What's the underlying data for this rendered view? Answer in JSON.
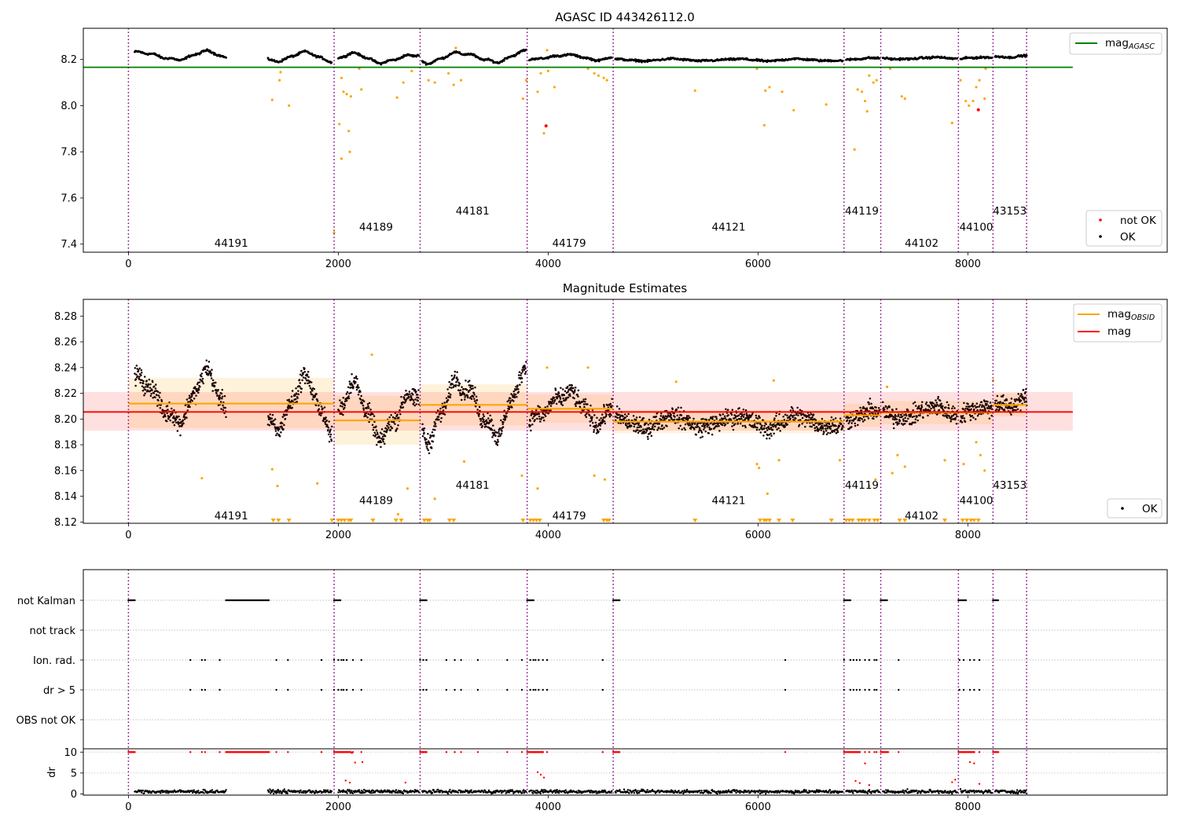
{
  "chart_data": [
    {
      "type": "scatter",
      "title": "AGASC ID 443426112.0",
      "xlim": [
        -430,
        9900
      ],
      "ylim": [
        7.365,
        8.335
      ],
      "xticks": [
        0,
        2000,
        4000,
        6000,
        8000
      ],
      "yticks": [
        7.4,
        7.6,
        7.8,
        8.0,
        8.2
      ],
      "ytick_labels": [
        "7.4",
        "7.6",
        "7.8",
        "8.0",
        "8.2"
      ],
      "mag_agasc": 8.166,
      "mag_agasc_xrange": [
        -430,
        9000
      ],
      "obsid_boundaries": [
        0,
        1960,
        2780,
        3800,
        4620,
        6820,
        7170,
        7910,
        8240,
        8560
      ],
      "obsids": [
        {
          "label": "44191",
          "x": 980,
          "y": 7.405
        },
        {
          "label": "44189",
          "x": 2360,
          "y": 7.475
        },
        {
          "label": "44181",
          "x": 3280,
          "y": 7.545
        },
        {
          "label": "44179",
          "x": 4200,
          "y": 7.405
        },
        {
          "label": "44121",
          "x": 5720,
          "y": 7.475
        },
        {
          "label": "44119",
          "x": 6990,
          "y": 7.545
        },
        {
          "label": "44102",
          "x": 7560,
          "y": 7.405
        },
        {
          "label": "44100",
          "x": 8080,
          "y": 7.475
        },
        {
          "label": "43153",
          "x": 8400,
          "y": 7.545
        }
      ],
      "segments": [
        {
          "start": 60,
          "end": 930,
          "base": 8.215,
          "amp": 0.025,
          "noise": 0.008
        },
        {
          "start": 1330,
          "end": 1940,
          "base": 8.21,
          "amp": 0.025,
          "noise": 0.008
        },
        {
          "start": 2000,
          "end": 2770,
          "base": 8.205,
          "amp": 0.025,
          "noise": 0.008
        },
        {
          "start": 2800,
          "end": 3790,
          "base": 8.21,
          "amp": 0.03,
          "noise": 0.008
        },
        {
          "start": 3820,
          "end": 4610,
          "base": 8.21,
          "amp": 0.015,
          "noise": 0.008
        },
        {
          "start": 4640,
          "end": 6810,
          "base": 8.198,
          "amp": 0.006,
          "noise": 0.008
        },
        {
          "start": 6840,
          "end": 7160,
          "base": 8.203,
          "amp": 0.006,
          "noise": 0.008
        },
        {
          "start": 7190,
          "end": 7900,
          "base": 8.205,
          "amp": 0.006,
          "noise": 0.008
        },
        {
          "start": 7930,
          "end": 8230,
          "base": 8.205,
          "amp": 0.006,
          "noise": 0.008
        },
        {
          "start": 8260,
          "end": 8560,
          "base": 8.215,
          "amp": 0.008,
          "noise": 0.008
        }
      ],
      "outliers": [
        {
          "x": 1370,
          "y": 8.025
        },
        {
          "x": 1440,
          "y": 8.11
        },
        {
          "x": 1450,
          "y": 8.145
        },
        {
          "x": 1530,
          "y": 8.0
        },
        {
          "x": 1960,
          "y": 7.45
        },
        {
          "x": 2010,
          "y": 7.92
        },
        {
          "x": 2030,
          "y": 7.77
        },
        {
          "x": 2050,
          "y": 8.06
        },
        {
          "x": 2080,
          "y": 8.05
        },
        {
          "x": 2100,
          "y": 7.89
        },
        {
          "x": 2110,
          "y": 7.8
        },
        {
          "x": 2120,
          "y": 8.04
        },
        {
          "x": 2030,
          "y": 8.12
        },
        {
          "x": 2200,
          "y": 8.16
        },
        {
          "x": 2220,
          "y": 8.07
        },
        {
          "x": 2560,
          "y": 8.035
        },
        {
          "x": 2620,
          "y": 8.1
        },
        {
          "x": 2700,
          "y": 8.15
        },
        {
          "x": 2860,
          "y": 8.11
        },
        {
          "x": 2920,
          "y": 8.1
        },
        {
          "x": 3050,
          "y": 8.14
        },
        {
          "x": 3100,
          "y": 8.09
        },
        {
          "x": 3120,
          "y": 8.25
        },
        {
          "x": 3170,
          "y": 8.11
        },
        {
          "x": 3760,
          "y": 8.03
        },
        {
          "x": 3790,
          "y": 8.11
        },
        {
          "x": 3900,
          "y": 8.06
        },
        {
          "x": 3930,
          "y": 8.14
        },
        {
          "x": 3960,
          "y": 7.88
        },
        {
          "x": 3990,
          "y": 8.24
        },
        {
          "x": 4000,
          "y": 8.15
        },
        {
          "x": 4060,
          "y": 8.08
        },
        {
          "x": 4380,
          "y": 8.16
        },
        {
          "x": 4440,
          "y": 8.14
        },
        {
          "x": 4480,
          "y": 8.13
        },
        {
          "x": 4530,
          "y": 8.12
        },
        {
          "x": 4560,
          "y": 8.11
        },
        {
          "x": 5400,
          "y": 8.065
        },
        {
          "x": 5990,
          "y": 8.16
        },
        {
          "x": 6060,
          "y": 7.915
        },
        {
          "x": 6070,
          "y": 8.065
        },
        {
          "x": 6110,
          "y": 8.08
        },
        {
          "x": 6230,
          "y": 8.06
        },
        {
          "x": 6340,
          "y": 7.98
        },
        {
          "x": 6650,
          "y": 8.005
        },
        {
          "x": 6920,
          "y": 7.81
        },
        {
          "x": 6950,
          "y": 8.07
        },
        {
          "x": 6990,
          "y": 8.06
        },
        {
          "x": 7020,
          "y": 8.02
        },
        {
          "x": 7040,
          "y": 7.975
        },
        {
          "x": 7060,
          "y": 8.13
        },
        {
          "x": 7100,
          "y": 8.1
        },
        {
          "x": 7130,
          "y": 8.11
        },
        {
          "x": 7370,
          "y": 8.04
        },
        {
          "x": 7400,
          "y": 8.03
        },
        {
          "x": 7260,
          "y": 8.16
        },
        {
          "x": 7850,
          "y": 7.925
        },
        {
          "x": 7930,
          "y": 8.11
        },
        {
          "x": 7980,
          "y": 8.02
        },
        {
          "x": 8010,
          "y": 8.0
        },
        {
          "x": 8050,
          "y": 8.02
        },
        {
          "x": 8080,
          "y": 8.08
        },
        {
          "x": 8110,
          "y": 8.11
        },
        {
          "x": 8160,
          "y": 8.03
        },
        {
          "x": 8170,
          "y": 8.16
        }
      ],
      "not_ok": [
        {
          "x": 3980,
          "y": 7.912
        },
        {
          "x": 8100,
          "y": 7.982
        }
      ],
      "legend": [
        {
          "label": "mag",
          "sub": "AGASC",
          "color": "#008000"
        }
      ],
      "legend2": [
        {
          "label": "not OK",
          "color": "#ff0000"
        },
        {
          "label": "OK",
          "color": "#000000"
        }
      ]
    },
    {
      "type": "scatter",
      "title": "Magnitude Estimates",
      "xlim": [
        -430,
        9900
      ],
      "ylim": [
        8.119,
        8.293
      ],
      "xticks": [
        0,
        2000,
        4000,
        6000,
        8000
      ],
      "yticks": [
        8.12,
        8.14,
        8.16,
        8.18,
        8.2,
        8.22,
        8.24,
        8.26,
        8.28
      ],
      "ytick_labels": [
        "8.12",
        "8.14",
        "8.16",
        "8.18",
        "8.20",
        "8.22",
        "8.24",
        "8.26",
        "8.28"
      ],
      "mag": 8.2055,
      "mag_band": [
        8.191,
        8.221
      ],
      "mag_xrange": [
        -430,
        9000
      ],
      "obsid_levels": [
        {
          "start": 0,
          "end": 1960,
          "mag": 8.212,
          "band": [
            8.193,
            8.232
          ]
        },
        {
          "start": 1960,
          "end": 2780,
          "mag": 8.199,
          "band": [
            8.18,
            8.218
          ]
        },
        {
          "start": 2780,
          "end": 3800,
          "mag": 8.211,
          "band": [
            8.195,
            8.227
          ]
        },
        {
          "start": 3800,
          "end": 4620,
          "mag": 8.208,
          "band": [
            8.197,
            8.219
          ]
        },
        {
          "start": 4620,
          "end": 6820,
          "mag": 8.198,
          "band": [
            8.189,
            8.207
          ]
        },
        {
          "start": 6820,
          "end": 7170,
          "mag": 8.203,
          "band": [
            8.194,
            8.212
          ]
        },
        {
          "start": 7170,
          "end": 7910,
          "mag": 8.205,
          "band": [
            8.196,
            8.214
          ]
        },
        {
          "start": 7910,
          "end": 8240,
          "mag": 8.205,
          "band": [
            8.196,
            8.214
          ]
        },
        {
          "start": 8240,
          "end": 8560,
          "mag": 8.211,
          "band": [
            8.202,
            8.22
          ]
        }
      ],
      "obsids": [
        {
          "label": "44191",
          "x": 980,
          "y": 8.125
        },
        {
          "label": "44189",
          "x": 2360,
          "y": 8.137
        },
        {
          "label": "44181",
          "x": 3280,
          "y": 8.149
        },
        {
          "label": "44179",
          "x": 4200,
          "y": 8.125
        },
        {
          "label": "44121",
          "x": 5720,
          "y": 8.137
        },
        {
          "label": "44119",
          "x": 6990,
          "y": 8.149
        },
        {
          "label": "44102",
          "x": 7560,
          "y": 8.125
        },
        {
          "label": "44100",
          "x": 8080,
          "y": 8.137
        },
        {
          "label": "43153",
          "x": 8400,
          "y": 8.149
        }
      ],
      "outliers": [
        {
          "x": 700,
          "y": 8.154
        },
        {
          "x": 1420,
          "y": 8.148
        },
        {
          "x": 1370,
          "y": 8.161
        },
        {
          "x": 1800,
          "y": 8.15
        },
        {
          "x": 2320,
          "y": 8.25
        },
        {
          "x": 2660,
          "y": 8.146
        },
        {
          "x": 2570,
          "y": 8.126
        },
        {
          "x": 2920,
          "y": 8.138
        },
        {
          "x": 3200,
          "y": 8.167
        },
        {
          "x": 3750,
          "y": 8.156
        },
        {
          "x": 3900,
          "y": 8.146
        },
        {
          "x": 3990,
          "y": 8.24
        },
        {
          "x": 4380,
          "y": 8.24
        },
        {
          "x": 4440,
          "y": 8.156
        },
        {
          "x": 4540,
          "y": 8.153
        },
        {
          "x": 5220,
          "y": 8.229
        },
        {
          "x": 5990,
          "y": 8.165
        },
        {
          "x": 6010,
          "y": 8.162
        },
        {
          "x": 6090,
          "y": 8.142
        },
        {
          "x": 6150,
          "y": 8.23
        },
        {
          "x": 6200,
          "y": 8.168
        },
        {
          "x": 6780,
          "y": 8.168
        },
        {
          "x": 7060,
          "y": 8.148
        },
        {
          "x": 7120,
          "y": 8.153
        },
        {
          "x": 7230,
          "y": 8.225
        },
        {
          "x": 7280,
          "y": 8.158
        },
        {
          "x": 7400,
          "y": 8.163
        },
        {
          "x": 7330,
          "y": 8.172
        },
        {
          "x": 7780,
          "y": 8.168
        },
        {
          "x": 7960,
          "y": 8.165
        },
        {
          "x": 8080,
          "y": 8.182
        },
        {
          "x": 8120,
          "y": 8.172
        },
        {
          "x": 8160,
          "y": 8.16
        },
        {
          "x": 8240,
          "y": 8.23
        }
      ],
      "floor_markers": [
        1380,
        1430,
        1530,
        1940,
        2000,
        2030,
        2060,
        2100,
        2120,
        2330,
        2550,
        2600,
        2820,
        2850,
        2870,
        3060,
        3100,
        3760,
        3830,
        3860,
        3890,
        3920,
        4530,
        4560,
        4580,
        5400,
        6020,
        6060,
        6080,
        6110,
        6200,
        6330,
        6700,
        6840,
        6870,
        6900,
        6960,
        6990,
        7020,
        7060,
        7110,
        7140,
        7350,
        7400,
        7780,
        7950,
        7990,
        8030,
        8060,
        8100
      ],
      "legend": [
        {
          "label": "mag",
          "sub": "OBSID",
          "color": "#ffa500"
        },
        {
          "label": "mag",
          "sub": "",
          "color": "#ff0000"
        }
      ],
      "legend2": [
        {
          "label": "OK",
          "color": "#000000"
        }
      ]
    },
    {
      "type": "scatter",
      "title": "",
      "xlim": [
        -430,
        9900
      ],
      "xticks": [
        0,
        2000,
        4000,
        6000,
        8000
      ],
      "flag_rows": [
        "not Kalman",
        "not track",
        "Ion. rad.",
        "dr > 5",
        "OBS not OK"
      ],
      "not_kalman_ranges": [
        [
          0,
          60
        ],
        [
          930,
          1340
        ],
        [
          1960,
          2020
        ],
        [
          2780,
          2840
        ],
        [
          3800,
          3870
        ],
        [
          4620,
          4680
        ],
        [
          6820,
          6890
        ],
        [
          7170,
          7240
        ],
        [
          7910,
          7990
        ],
        [
          8240,
          8290
        ]
      ],
      "ion_rad_points": [
        590,
        700,
        730,
        870,
        1410,
        1520,
        1840,
        1960,
        2000,
        2030,
        2050,
        2080,
        2140,
        2220,
        2780,
        2810,
        2840,
        3030,
        3110,
        3170,
        3330,
        3610,
        3750,
        3830,
        3860,
        3880,
        3910,
        3950,
        3990,
        4520,
        6260,
        6820,
        6880,
        6910,
        6940,
        6970,
        7020,
        7060,
        7110,
        7130,
        7340,
        7920,
        7960,
        8020,
        8060,
        8110
      ],
      "dr_ylim": [
        -0.3,
        10.8
      ],
      "dr_yticks": [
        0,
        5,
        10
      ],
      "dr_ytick_labels": [
        "0",
        "5",
        "10"
      ],
      "dr_ylabel": "dr",
      "dr_red_ranges": [
        [
          0,
          60
        ],
        [
          930,
          1340
        ],
        [
          1960,
          2120
        ],
        [
          2780,
          2840
        ],
        [
          3800,
          3950
        ],
        [
          4620,
          4680
        ],
        [
          6820,
          6970
        ],
        [
          7170,
          7240
        ],
        [
          7910,
          8060
        ],
        [
          8240,
          8290
        ]
      ],
      "dr_red_points": [
        {
          "x": 2070,
          "y": 3.2
        },
        {
          "x": 2110,
          "y": 2.7
        },
        {
          "x": 2160,
          "y": 7.5
        },
        {
          "x": 2230,
          "y": 7.6
        },
        {
          "x": 2130,
          "y": 9.8
        },
        {
          "x": 2640,
          "y": 2.7
        },
        {
          "x": 3900,
          "y": 5.2
        },
        {
          "x": 3930,
          "y": 4.6
        },
        {
          "x": 3960,
          "y": 3.9
        },
        {
          "x": 6930,
          "y": 3.1
        },
        {
          "x": 6970,
          "y": 2.6
        },
        {
          "x": 7020,
          "y": 7.3
        },
        {
          "x": 7060,
          "y": 2.1
        },
        {
          "x": 7850,
          "y": 2.8
        },
        {
          "x": 7880,
          "y": 3.4
        },
        {
          "x": 8020,
          "y": 7.6
        },
        {
          "x": 8060,
          "y": 7.3
        },
        {
          "x": 8110,
          "y": 2.4
        }
      ]
    }
  ]
}
